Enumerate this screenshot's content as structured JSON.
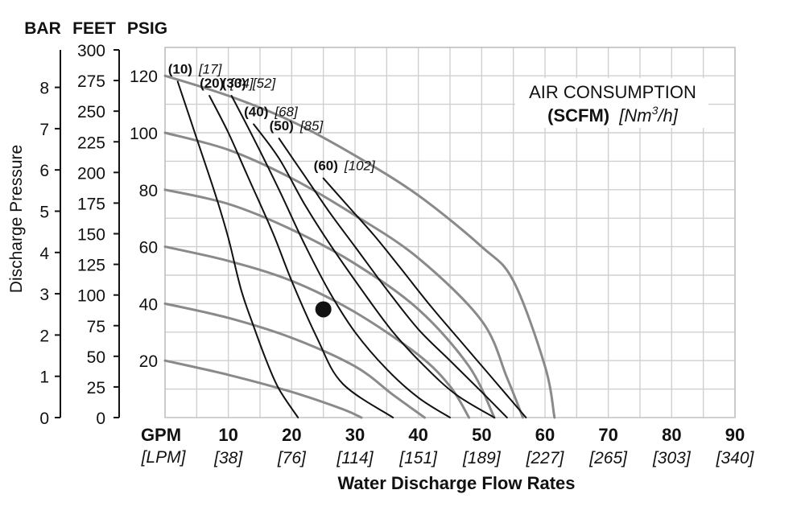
{
  "chart_data": {
    "type": "line",
    "headers": {
      "bar": "BAR",
      "feet": "FEET",
      "psig": "PSIG"
    },
    "ylabel": "Discharge Pressure",
    "xlabel": "Water Discharge Flow Rates",
    "x_unit": "GPM",
    "x_unit_alt": "[LPM]",
    "x_ticks": [
      {
        "gpm": "10",
        "lpm": "[38]"
      },
      {
        "gpm": "20",
        "lpm": "[76]"
      },
      {
        "gpm": "30",
        "lpm": "[114]"
      },
      {
        "gpm": "40",
        "lpm": "[151]"
      },
      {
        "gpm": "50",
        "lpm": "[189]"
      },
      {
        "gpm": "60",
        "lpm": "[227]"
      },
      {
        "gpm": "70",
        "lpm": "[265]"
      },
      {
        "gpm": "80",
        "lpm": "[303]"
      },
      {
        "gpm": "90",
        "lpm": "[340]"
      }
    ],
    "xlim": [
      0,
      90
    ],
    "psig_ticks": [
      "20",
      "40",
      "60",
      "80",
      "100",
      "120"
    ],
    "ylim_psig": [
      0,
      130
    ],
    "feet_ticks": [
      "0",
      "25",
      "50",
      "75",
      "100",
      "125",
      "150",
      "175",
      "200",
      "225",
      "250",
      "275",
      "300"
    ],
    "bar_ticks": [
      "0",
      "1",
      "2",
      "3",
      "4",
      "5",
      "6",
      "7",
      "8"
    ],
    "legend": {
      "title_line1": "AIR CONSUMPTION",
      "title_bold": "(SCFM)",
      "title_italic_pre": "[Nm",
      "title_sup": "3",
      "title_italic_post": "/h]"
    },
    "pressure_curves": [
      {
        "inlet_psig": 120,
        "points": [
          [
            0,
            120
          ],
          [
            10,
            113
          ],
          [
            20,
            104
          ],
          [
            30,
            92
          ],
          [
            40,
            78
          ],
          [
            50,
            60
          ],
          [
            55,
            48
          ],
          [
            60,
            18
          ],
          [
            61.5,
            0
          ]
        ]
      },
      {
        "inlet_psig": 100,
        "points": [
          [
            0,
            100
          ],
          [
            10,
            94
          ],
          [
            20,
            84
          ],
          [
            30,
            71
          ],
          [
            40,
            56
          ],
          [
            50,
            34
          ],
          [
            54,
            14
          ],
          [
            56.5,
            0
          ]
        ]
      },
      {
        "inlet_psig": 80,
        "points": [
          [
            0,
            80
          ],
          [
            10,
            75
          ],
          [
            20,
            66
          ],
          [
            30,
            54
          ],
          [
            40,
            38
          ],
          [
            48,
            18
          ],
          [
            52,
            0
          ]
        ]
      },
      {
        "inlet_psig": 60,
        "points": [
          [
            0,
            60
          ],
          [
            10,
            55
          ],
          [
            20,
            48
          ],
          [
            30,
            37
          ],
          [
            40,
            22
          ],
          [
            45,
            11
          ],
          [
            48,
            0
          ]
        ]
      },
      {
        "inlet_psig": 40,
        "points": [
          [
            0,
            40
          ],
          [
            10,
            35
          ],
          [
            20,
            28
          ],
          [
            30,
            18
          ],
          [
            36,
            8
          ],
          [
            41,
            0
          ]
        ]
      },
      {
        "inlet_psig": 20,
        "points": [
          [
            0,
            20
          ],
          [
            10,
            15
          ],
          [
            20,
            9
          ],
          [
            28,
            3
          ],
          [
            31,
            0
          ]
        ]
      }
    ],
    "air_consumption_curves": [
      {
        "scfm": "(10)",
        "nm3h": "[17]",
        "points": [
          [
            2,
            118
          ],
          [
            5,
            98
          ],
          [
            8,
            78
          ],
          [
            10,
            63
          ],
          [
            12,
            45
          ],
          [
            14,
            32
          ],
          [
            16,
            20
          ],
          [
            18,
            10
          ],
          [
            21,
            0
          ]
        ]
      },
      {
        "scfm": "(20)",
        "nm3h": "[34]",
        "points": [
          [
            7,
            113
          ],
          [
            10,
            100
          ],
          [
            13,
            85
          ],
          [
            17,
            65
          ],
          [
            20,
            48
          ],
          [
            24,
            28
          ],
          [
            28,
            12
          ],
          [
            36,
            0
          ]
        ]
      },
      {
        "scfm": "(30)",
        "nm3h": "[52]",
        "points": [
          [
            10.5,
            113
          ],
          [
            14,
            98
          ],
          [
            18,
            80
          ],
          [
            22,
            61
          ],
          [
            26,
            44
          ],
          [
            30,
            30
          ],
          [
            35,
            17
          ],
          [
            40,
            7
          ],
          [
            45,
            0
          ]
        ]
      },
      {
        "scfm": "(40)",
        "nm3h": "[68]",
        "points": [
          [
            14,
            103
          ],
          [
            18,
            91
          ],
          [
            22,
            75
          ],
          [
            26,
            61
          ],
          [
            31,
            45
          ],
          [
            36,
            30
          ],
          [
            41,
            18
          ],
          [
            46,
            8
          ],
          [
            52,
            0
          ]
        ]
      },
      {
        "scfm": "(50)",
        "nm3h": "[85]",
        "points": [
          [
            18,
            98
          ],
          [
            22,
            85
          ],
          [
            26,
            72
          ],
          [
            30,
            60
          ],
          [
            35,
            45
          ],
          [
            40,
            31
          ],
          [
            45,
            20
          ],
          [
            50,
            9
          ],
          [
            54,
            0
          ]
        ]
      },
      {
        "scfm": "(60)",
        "nm3h": "[102]",
        "points": [
          [
            25,
            84
          ],
          [
            29,
            74
          ],
          [
            33,
            64
          ],
          [
            37,
            53
          ],
          [
            42,
            39
          ],
          [
            47,
            26
          ],
          [
            52,
            13
          ],
          [
            57,
            0
          ]
        ]
      }
    ],
    "operating_point": {
      "gpm": 25,
      "psig": 38
    },
    "grid": true
  }
}
